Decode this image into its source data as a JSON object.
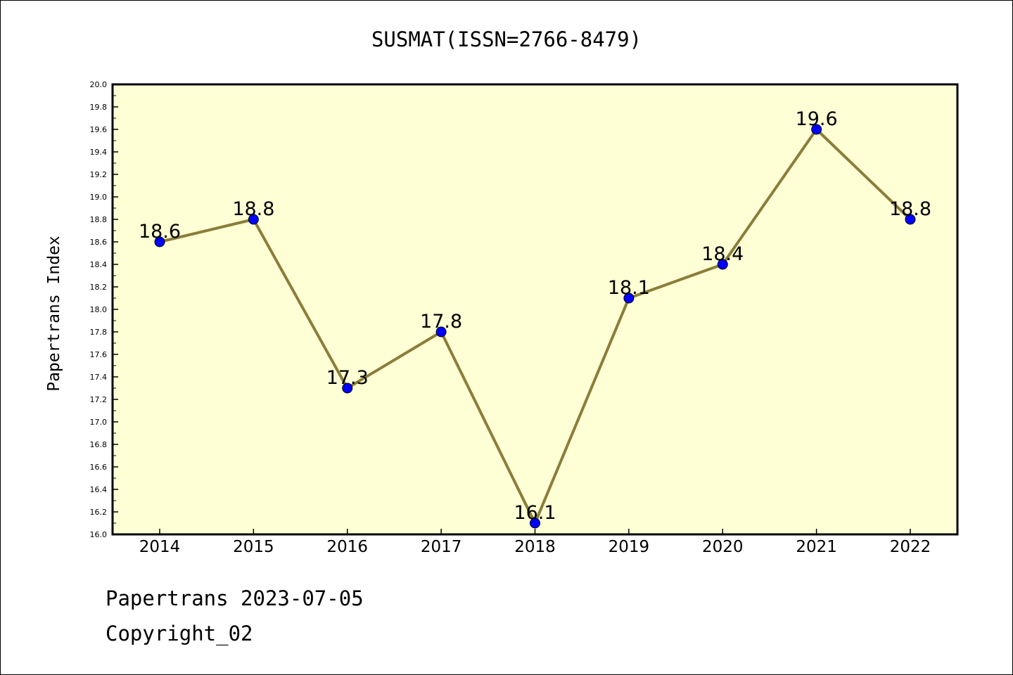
{
  "chart_data": {
    "type": "line",
    "title": "SUSMAT(ISSN=2766-8479)",
    "ylabel": "Papertrans Index",
    "xlabel": "",
    "categories": [
      "2014",
      "2015",
      "2016",
      "2017",
      "2018",
      "2019",
      "2020",
      "2021",
      "2022"
    ],
    "values": [
      18.6,
      18.8,
      17.3,
      17.8,
      16.1,
      18.1,
      18.4,
      19.6,
      18.8
    ],
    "data_labels": [
      "18.6",
      "18.8",
      "17.3",
      "17.8",
      "16.1",
      "18.1",
      "18.4",
      "19.6",
      "18.8"
    ],
    "ylim": [
      16.0,
      20.0
    ],
    "yticks": [
      "16.0",
      "16.2",
      "16.4",
      "16.6",
      "16.8",
      "17.0",
      "17.2",
      "17.4",
      "17.6",
      "17.8",
      "18.0",
      "18.2",
      "18.4",
      "18.6",
      "18.8",
      "19.0",
      "19.2",
      "19.4",
      "19.6",
      "19.8",
      "20.0"
    ],
    "grid": false,
    "legend": "none",
    "colors": {
      "plot_background": "#ffffd5",
      "line": "#8b7d3a",
      "marker": "#0000ff"
    }
  },
  "footer": {
    "date_line": "Papertrans 2023-07-05",
    "copyright_line": "Copyright_02"
  }
}
